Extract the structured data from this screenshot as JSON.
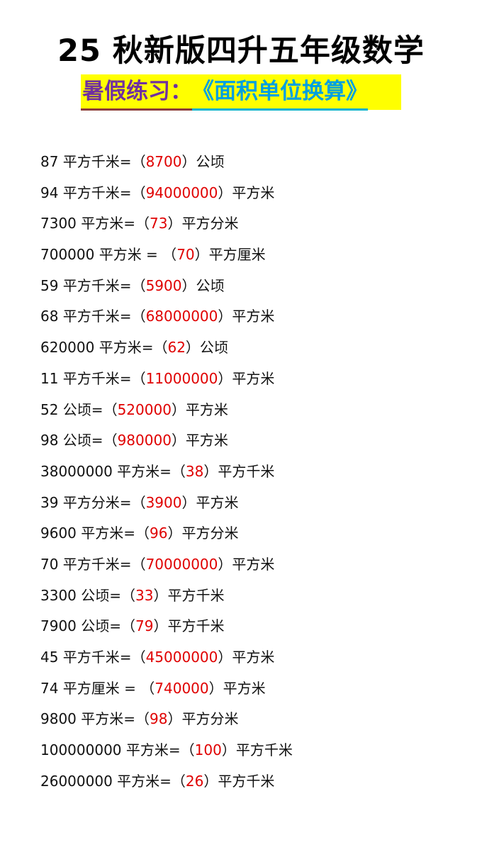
{
  "title": "25 秋新版四升五年级数学",
  "subtitle": {
    "prefix": "暑假练习：",
    "topic": "《面积单位换算》"
  },
  "colors": {
    "answer": "#e00000",
    "highlight": "#ffff00",
    "subtitle_prefix": "#7030a0",
    "subtitle_topic": "#00a0e0"
  },
  "exercises": [
    {
      "q": "87 平方千米=（",
      "a": "8700",
      "u": "）公顷"
    },
    {
      "q": "94 平方千米=（",
      "a": "94000000",
      "u": "）平方米"
    },
    {
      "q": "7300 平方米=（",
      "a": "73",
      "u": "）平方分米"
    },
    {
      "q": "700000 平方米 = （",
      "a": "70",
      "u": "）平方厘米"
    },
    {
      "q": "59 平方千米=（",
      "a": "5900",
      "u": "）公顷"
    },
    {
      "q": "68 平方千米=（",
      "a": "68000000",
      "u": "）平方米"
    },
    {
      "q": "620000 平方米=（",
      "a": "62",
      "u": "）公顷"
    },
    {
      "q": "11 平方千米=（",
      "a": "11000000",
      "u": "）平方米"
    },
    {
      "q": "52 公顷=（",
      "a": "520000",
      "u": "）平方米"
    },
    {
      "q": "98 公顷=（",
      "a": "980000",
      "u": "）平方米"
    },
    {
      "q": "38000000 平方米=（",
      "a": "38",
      "u": "）平方千米"
    },
    {
      "q": "39 平方分米=（",
      "a": "3900",
      "u": "）平方米"
    },
    {
      "q": "9600 平方米=（",
      "a": "96",
      "u": "）平方分米"
    },
    {
      "q": "70 平方千米=（",
      "a": "70000000",
      "u": "）平方米"
    },
    {
      "q": "3300 公顷=（",
      "a": "33",
      "u": "）平方千米"
    },
    {
      "q": "7900 公顷=（",
      "a": "79",
      "u": "）平方千米"
    },
    {
      "q": "45 平方千米=（",
      "a": "45000000",
      "u": "）平方米"
    },
    {
      "q": "74 平方厘米 = （",
      "a": "740000",
      "u": "）平方米"
    },
    {
      "q": "9800 平方米=（",
      "a": "98",
      "u": "）平方分米"
    },
    {
      "q": "100000000 平方米=（",
      "a": "100",
      "u": "）平方千米"
    },
    {
      "q": "26000000 平方米=（",
      "a": "26",
      "u": "）平方千米"
    }
  ]
}
